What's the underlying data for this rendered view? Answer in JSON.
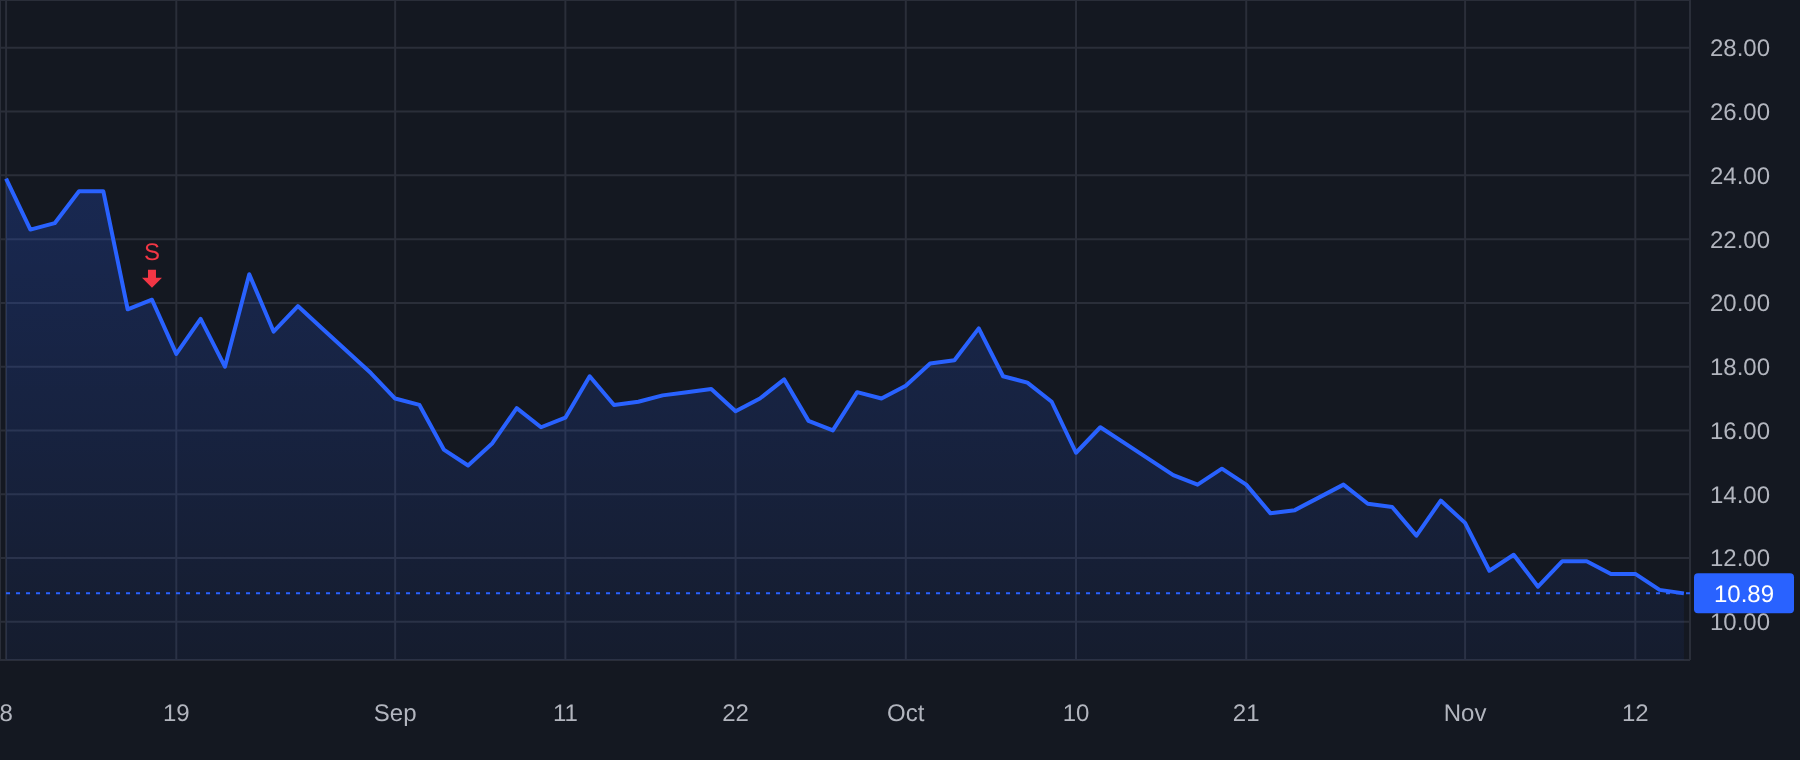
{
  "chart_data": {
    "type": "area",
    "categories": [
      "8",
      null,
      null,
      null,
      null,
      null,
      null,
      "19",
      null,
      null,
      null,
      null,
      null,
      null,
      null,
      null,
      "Sep",
      null,
      null,
      null,
      null,
      null,
      null,
      "11",
      null,
      null,
      null,
      null,
      null,
      null,
      "22",
      null,
      null,
      null,
      null,
      null,
      null,
      "Oct",
      null,
      null,
      null,
      null,
      null,
      null,
      "10",
      null,
      null,
      null,
      null,
      null,
      null,
      "21",
      null,
      null,
      null,
      null,
      null,
      null,
      null,
      null,
      "Nov",
      null,
      null,
      null,
      null,
      null,
      null,
      "12",
      null,
      null
    ],
    "series": [
      {
        "color": "#2962ff",
        "values": [
          23.9,
          22.3,
          22.5,
          23.5,
          23.5,
          19.8,
          20.1,
          18.4,
          19.5,
          18.0,
          20.9,
          19.1,
          19.9,
          19.2,
          18.5,
          17.8,
          17.0,
          16.8,
          15.4,
          14.9,
          15.6,
          16.7,
          16.1,
          16.4,
          17.7,
          16.8,
          16.9,
          17.1,
          17.2,
          17.3,
          16.6,
          17.0,
          17.6,
          16.3,
          16.0,
          17.2,
          17.0,
          17.4,
          18.1,
          18.2,
          19.2,
          17.7,
          17.5,
          16.9,
          15.3,
          16.1,
          15.6,
          15.1,
          14.6,
          14.3,
          14.8,
          14.3,
          13.4,
          13.5,
          13.9,
          14.3,
          13.7,
          13.6,
          12.7,
          13.8,
          13.1,
          11.6,
          12.1,
          11.1,
          11.9,
          11.9,
          11.5,
          11.5,
          11.0,
          10.89
        ]
      }
    ],
    "ylim": [
      8.8,
      29.5
    ],
    "yticks": [
      {
        "value": 10,
        "label": "10.00"
      },
      {
        "value": 12,
        "label": "12.00"
      },
      {
        "value": 14,
        "label": "14.00"
      },
      {
        "value": 16,
        "label": "16.00"
      },
      {
        "value": 18,
        "label": "18.00"
      },
      {
        "value": 20,
        "label": "20.00"
      },
      {
        "value": 22,
        "label": "22.00"
      },
      {
        "value": 24,
        "label": "24.00"
      },
      {
        "value": 26,
        "label": "26.00"
      },
      {
        "value": 28,
        "label": "28.00"
      }
    ],
    "ref_lines": [
      {
        "axis": "y",
        "value": 10.89,
        "label": "10.89",
        "color": "#2962ff",
        "line_style": "dotted"
      }
    ],
    "annotations": [
      {
        "text": "S",
        "y": 20.1
      }
    ],
    "grid": true,
    "marker": "none",
    "line_style": "solid"
  }
}
